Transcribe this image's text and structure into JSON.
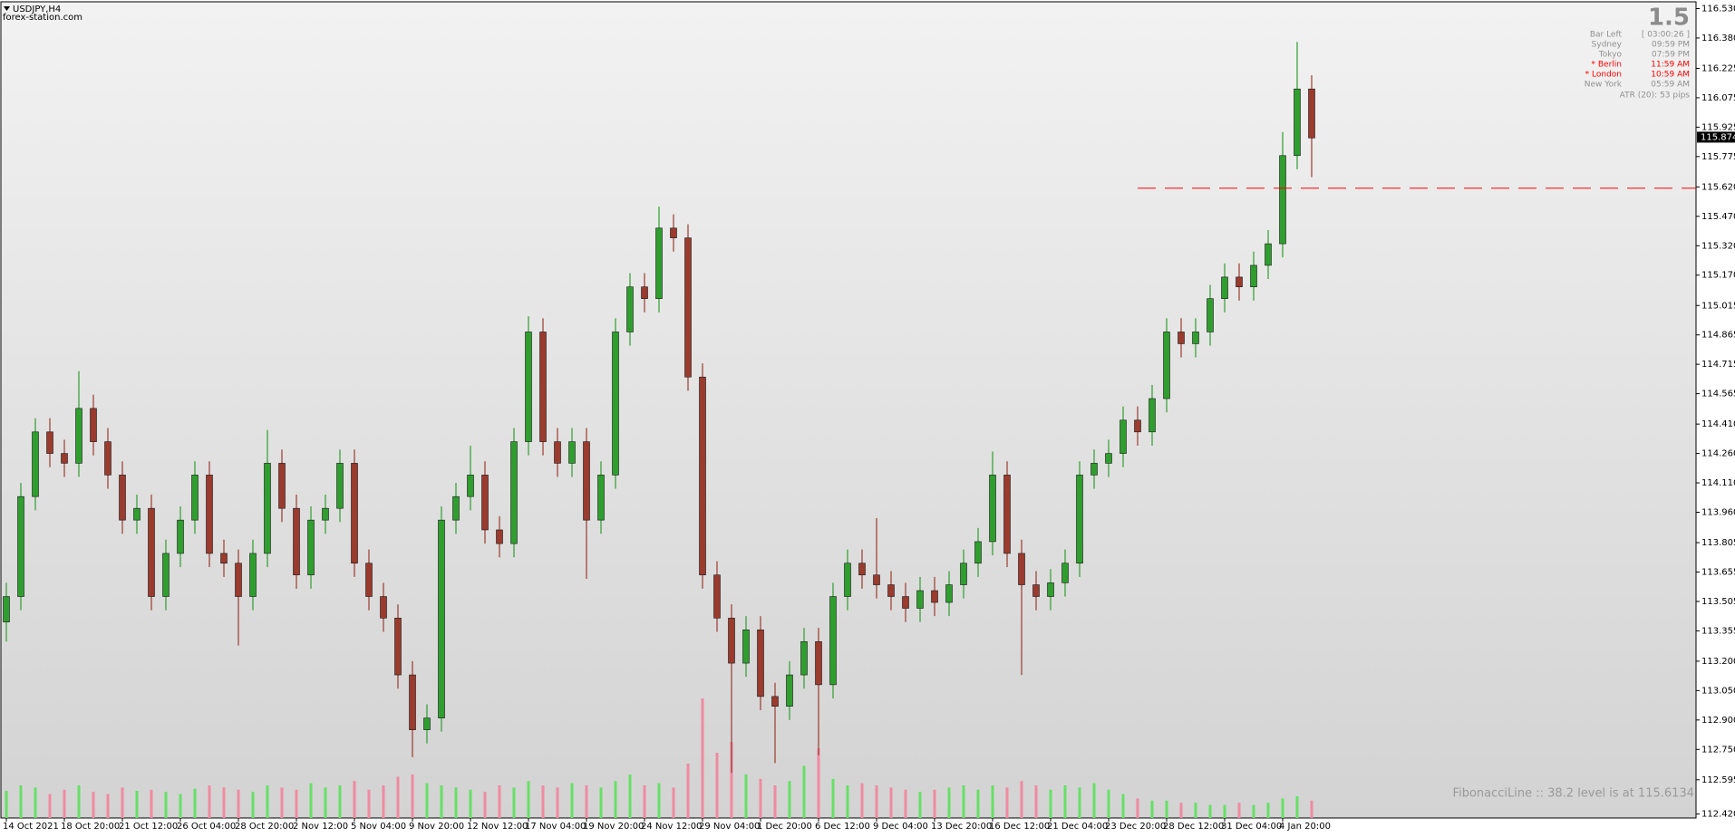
{
  "chart_data": {
    "type": "candlestick",
    "title": "USDJPY,H4",
    "subtitle": "forex-station.com",
    "categories": [
      "14 Oct 2021",
      null,
      null,
      null,
      "18 Oct 20:00",
      null,
      null,
      null,
      "21 Oct 12:00",
      null,
      null,
      null,
      "26 Oct 04:00",
      null,
      null,
      null,
      "28 Oct 20:00",
      null,
      null,
      null,
      "2 Nov 12:00",
      null,
      null,
      null,
      "5 Nov 04:00",
      null,
      null,
      null,
      "9 Nov 20:00",
      null,
      null,
      null,
      "12 Nov 12:00",
      null,
      null,
      null,
      "17 Nov 04:00",
      null,
      null,
      null,
      "19 Nov 20:00",
      null,
      null,
      null,
      "24 Nov 12:00",
      null,
      null,
      null,
      "29 Nov 04:00",
      null,
      null,
      null,
      "1 Dec 20:00",
      null,
      null,
      null,
      "6 Dec 12:00",
      null,
      null,
      null,
      "9 Dec 04:00",
      null,
      null,
      null,
      "13 Dec 20:00",
      null,
      null,
      null,
      "16 Dec 12:00",
      null,
      null,
      null,
      "21 Dec 04:00",
      null,
      null,
      null,
      "23 Dec 20:00",
      null,
      null,
      null,
      "28 Dec 12:00",
      null,
      null,
      null,
      "31 Dec 04:00",
      null,
      null,
      null,
      "4 Jan 20:00",
      null,
      null
    ],
    "open": [
      113.4,
      113.53,
      114.04,
      114.37,
      114.26,
      114.21,
      114.49,
      114.32,
      114.15,
      113.92,
      113.98,
      113.53,
      113.75,
      113.92,
      114.15,
      113.75,
      113.7,
      113.53,
      113.75,
      114.21,
      113.98,
      113.64,
      113.92,
      113.98,
      114.21,
      113.7,
      113.53,
      113.42,
      113.13,
      112.85,
      112.91,
      113.92,
      114.04,
      114.15,
      113.87,
      113.8,
      114.32,
      114.88,
      114.32,
      114.21,
      114.32,
      113.92,
      114.15,
      114.88,
      115.11,
      115.05,
      115.41,
      115.36,
      114.65,
      113.64,
      113.42,
      113.19,
      113.36,
      113.02,
      112.97,
      113.13,
      113.3,
      113.08,
      113.53,
      113.7,
      113.64,
      113.59,
      113.53,
      113.47,
      113.56,
      113.5,
      113.59,
      113.7,
      113.81,
      114.15,
      113.75,
      113.59,
      113.53,
      113.6,
      113.7,
      114.15,
      114.21,
      114.26,
      114.43,
      114.37,
      114.54,
      114.88,
      114.82,
      114.88,
      115.05,
      115.16,
      115.11,
      115.22,
      115.33,
      115.78,
      116.12
    ],
    "high": [
      113.6,
      114.11,
      114.44,
      114.44,
      114.33,
      114.68,
      114.56,
      114.39,
      114.22,
      114.05,
      114.05,
      113.82,
      113.99,
      114.22,
      114.22,
      113.82,
      113.77,
      113.82,
      114.38,
      114.28,
      114.05,
      113.99,
      114.05,
      114.28,
      114.28,
      113.77,
      113.6,
      113.49,
      113.2,
      112.98,
      113.99,
      114.11,
      114.3,
      114.22,
      113.94,
      114.39,
      114.96,
      114.95,
      114.39,
      114.39,
      114.39,
      114.22,
      114.95,
      115.18,
      115.18,
      115.52,
      115.48,
      115.43,
      114.72,
      113.71,
      113.49,
      113.43,
      113.43,
      113.09,
      113.2,
      113.37,
      113.37,
      113.6,
      113.77,
      113.77,
      113.93,
      113.66,
      113.6,
      113.63,
      113.63,
      113.66,
      113.77,
      113.88,
      114.27,
      114.22,
      113.82,
      113.66,
      113.67,
      113.77,
      114.22,
      114.28,
      114.33,
      114.5,
      114.5,
      114.61,
      114.95,
      114.95,
      114.95,
      115.12,
      115.23,
      115.23,
      115.29,
      115.4,
      115.9,
      116.36,
      116.19
    ],
    "low": [
      113.3,
      113.46,
      113.97,
      114.19,
      114.14,
      114.14,
      114.25,
      114.08,
      113.85,
      113.85,
      113.46,
      113.46,
      113.68,
      113.85,
      113.68,
      113.63,
      113.28,
      113.46,
      113.68,
      113.91,
      113.57,
      113.57,
      113.85,
      113.91,
      113.63,
      113.46,
      113.35,
      113.06,
      112.71,
      112.78,
      112.84,
      113.85,
      113.97,
      113.8,
      113.73,
      113.73,
      114.25,
      114.25,
      114.14,
      114.14,
      113.62,
      113.85,
      114.08,
      114.81,
      114.98,
      114.98,
      115.29,
      114.58,
      113.57,
      113.35,
      112.63,
      113.12,
      112.95,
      112.68,
      112.9,
      113.06,
      112.72,
      113.01,
      113.46,
      113.57,
      113.52,
      113.46,
      113.4,
      113.4,
      113.43,
      113.43,
      113.52,
      113.63,
      113.74,
      113.68,
      113.13,
      113.46,
      113.46,
      113.53,
      113.63,
      114.08,
      114.14,
      114.19,
      114.3,
      114.3,
      114.47,
      114.75,
      114.75,
      114.81,
      114.98,
      115.04,
      115.04,
      115.15,
      115.26,
      115.71,
      115.67
    ],
    "close": [
      113.53,
      114.04,
      114.37,
      114.26,
      114.21,
      114.49,
      114.32,
      114.15,
      113.92,
      113.98,
      113.53,
      113.75,
      113.92,
      114.15,
      113.75,
      113.7,
      113.53,
      113.75,
      114.21,
      113.98,
      113.64,
      113.92,
      113.98,
      114.21,
      113.7,
      113.53,
      113.42,
      113.13,
      112.85,
      112.91,
      113.92,
      114.04,
      114.15,
      113.87,
      113.8,
      114.32,
      114.88,
      114.32,
      114.21,
      114.32,
      113.92,
      114.15,
      114.88,
      115.11,
      115.05,
      115.41,
      115.36,
      114.65,
      113.64,
      113.42,
      113.19,
      113.36,
      113.02,
      112.97,
      113.13,
      113.3,
      113.08,
      113.53,
      113.7,
      113.64,
      113.59,
      113.53,
      113.47,
      113.56,
      113.5,
      113.59,
      113.7,
      113.81,
      114.15,
      113.75,
      113.59,
      113.53,
      113.6,
      113.7,
      114.15,
      114.21,
      114.26,
      114.43,
      114.37,
      114.54,
      114.88,
      114.82,
      114.88,
      115.05,
      115.16,
      115.11,
      115.22,
      115.33,
      115.78,
      116.12,
      115.87
    ],
    "volume": [
      25,
      30,
      28,
      22,
      26,
      30,
      24,
      22,
      28,
      25,
      26,
      24,
      22,
      27,
      30,
      28,
      26,
      24,
      30,
      28,
      26,
      32,
      28,
      30,
      34,
      26,
      30,
      38,
      40,
      32,
      30,
      28,
      26,
      24,
      30,
      28,
      34,
      30,
      28,
      32,
      30,
      28,
      34,
      40,
      30,
      32,
      28,
      50,
      110,
      60,
      70,
      40,
      36,
      30,
      34,
      48,
      64,
      36,
      30,
      32,
      30,
      28,
      26,
      24,
      26,
      28,
      30,
      26,
      30,
      28,
      34,
      30,
      26,
      30,
      28,
      32,
      26,
      22,
      18,
      16,
      16,
      14,
      14,
      12,
      12,
      14,
      12,
      14,
      18,
      20,
      16
    ],
    "up_color": "#2f9e2f",
    "down_color": "#9a3b2e",
    "volume_up_color": "#66e066",
    "volume_down_color": "#f08aa2",
    "ylim": [
      112.4,
      116.56
    ],
    "yticks": [
      {
        "value": 116.53,
        "label": "116.530"
      },
      {
        "value": 116.38,
        "label": "116.380"
      },
      116.225,
      116.075,
      115.925,
      115.775,
      {
        "value": 115.62,
        "label": "115.620"
      },
      {
        "value": 115.47,
        "label": "115.470"
      },
      {
        "value": 115.32,
        "label": "115.320"
      },
      {
        "value": 115.17,
        "label": "115.170"
      },
      115.015,
      114.865,
      114.715,
      114.565,
      {
        "value": 114.41,
        "label": "114.410"
      },
      {
        "value": 114.26,
        "label": "114.260"
      },
      {
        "value": 114.11,
        "label": "114.110"
      },
      {
        "value": 113.96,
        "label": "113.960"
      },
      113.805,
      113.655,
      113.505,
      113.355,
      {
        "value": 113.2,
        "label": "113.200"
      },
      {
        "value": 113.05,
        "label": "113.050"
      },
      {
        "value": 112.9,
        "label": "112.900"
      },
      {
        "value": 112.75,
        "label": "112.750"
      },
      112.595,
      {
        "value": 112.42,
        "label": "112.420"
      }
    ],
    "current_price": 115.874,
    "fib_level": 115.6134,
    "fib_color": "#ff0000",
    "annotation": "FibonacciLine :: 38.2 level is at 115.6134",
    "info_panel": {
      "big_value": "1.5",
      "rows": [
        {
          "label": "Bar Left",
          "value": "[ 03:00:26 ]",
          "color": "#909090"
        },
        {
          "label": "Sydney",
          "value": "09:59 PM",
          "color": "#909090"
        },
        {
          "label": "Tokyo",
          "value": "07:59 PM",
          "color": "#909090"
        },
        {
          "label": "* Berlin",
          "value": "11:59 AM",
          "color": "#ff0000"
        },
        {
          "label": "* London",
          "value": "10:59 AM",
          "color": "#ff0000"
        },
        {
          "label": "New York",
          "value": "05:59 AM",
          "color": "#909090"
        }
      ],
      "atr": "ATR (20): 53 pips"
    }
  }
}
